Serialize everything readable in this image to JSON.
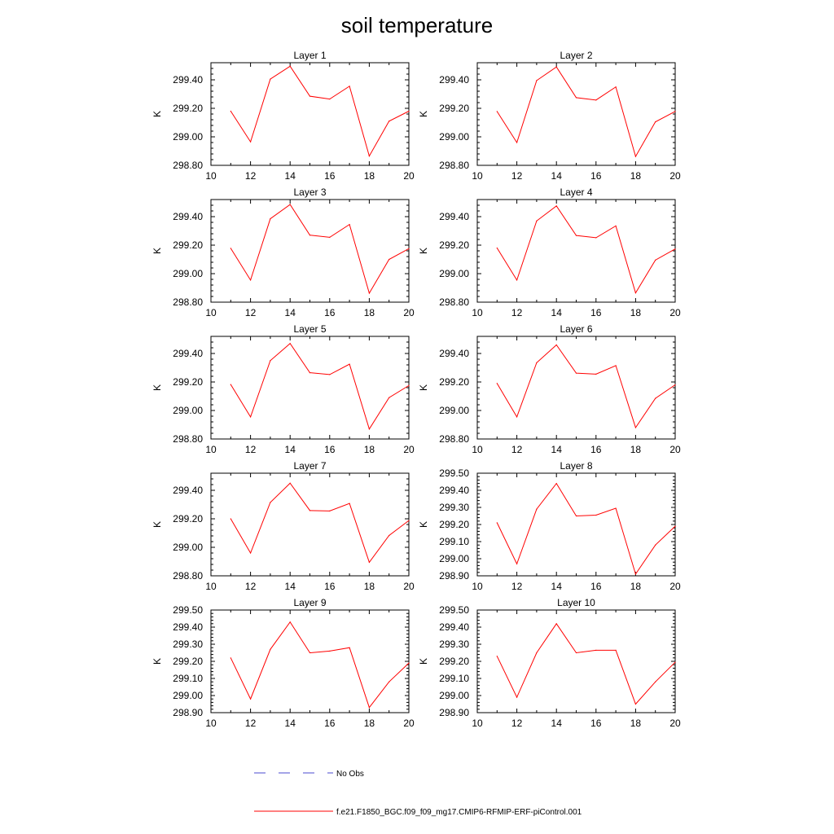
{
  "chart_data": {
    "type": "line",
    "title": "soil temperature",
    "legend": {
      "placement": "bottom",
      "entries": [
        {
          "label": "No Obs",
          "color": "#4a4ad0",
          "dash": "dashed"
        },
        {
          "label": "f.e21.F1850_BGC.f09_f09_mg17.CMIP6-RFMIP-ERF-piControl.001",
          "color": "#ff0000",
          "dash": "solid"
        }
      ]
    },
    "x": [
      11,
      12,
      13,
      14,
      15,
      16,
      17,
      18,
      19,
      20
    ],
    "xlim": [
      10,
      20
    ],
    "xticks": [
      "10",
      "12",
      "14",
      "16",
      "18",
      "20"
    ],
    "line_color": "#ff0000",
    "panels": [
      {
        "title": "Layer 1",
        "ylabel": "K",
        "ylim": [
          298.8,
          299.52
        ],
        "yticks": [
          "298.80",
          "299.00",
          "299.20",
          "299.40"
        ],
        "values": [
          299.18,
          298.965,
          299.405,
          299.495,
          299.285,
          299.265,
          299.355,
          298.865,
          299.11,
          299.18
        ]
      },
      {
        "title": "Layer 2",
        "ylabel": "K",
        "ylim": [
          298.8,
          299.52
        ],
        "yticks": [
          "298.80",
          "299.00",
          "299.20",
          "299.40"
        ],
        "values": [
          299.178,
          298.96,
          299.395,
          299.49,
          299.275,
          299.258,
          299.35,
          298.862,
          299.105,
          299.178
        ]
      },
      {
        "title": "Layer 3",
        "ylabel": "K",
        "ylim": [
          298.8,
          299.52
        ],
        "yticks": [
          "298.80",
          "299.00",
          "299.20",
          "299.40"
        ],
        "values": [
          299.178,
          298.955,
          299.385,
          299.485,
          299.27,
          299.255,
          299.345,
          298.863,
          299.1,
          299.175
        ]
      },
      {
        "title": "Layer 4",
        "ylabel": "K",
        "ylim": [
          298.8,
          299.52
        ],
        "yticks": [
          "298.80",
          "299.00",
          "299.20",
          "299.40"
        ],
        "values": [
          299.18,
          298.955,
          299.37,
          299.475,
          299.268,
          299.252,
          299.335,
          298.865,
          299.095,
          299.173
        ]
      },
      {
        "title": "Layer 5",
        "ylabel": "K",
        "ylim": [
          298.8,
          299.52
        ],
        "yticks": [
          "298.80",
          "299.00",
          "299.20",
          "299.40"
        ],
        "values": [
          299.182,
          298.955,
          299.35,
          299.47,
          299.265,
          299.252,
          299.325,
          298.87,
          299.09,
          299.175
        ]
      },
      {
        "title": "Layer 6",
        "ylabel": "K",
        "ylim": [
          298.8,
          299.52
        ],
        "yticks": [
          "298.80",
          "299.00",
          "299.20",
          "299.40"
        ],
        "values": [
          299.19,
          298.955,
          299.335,
          299.46,
          299.262,
          299.255,
          299.315,
          298.88,
          299.085,
          299.18
        ]
      },
      {
        "title": "Layer 7",
        "ylabel": "K",
        "ylim": [
          298.8,
          299.52
        ],
        "yticks": [
          "298.80",
          "299.00",
          "299.20",
          "299.40"
        ],
        "values": [
          299.2,
          298.96,
          299.315,
          299.45,
          299.258,
          299.255,
          299.308,
          298.895,
          299.083,
          299.188
        ]
      },
      {
        "title": "Layer 8",
        "ylabel": "K",
        "ylim": [
          298.9,
          299.5
        ],
        "yticks": [
          "298.90",
          "299.00",
          "299.10",
          "299.20",
          "299.30",
          "299.40",
          "299.50"
        ],
        "values": [
          299.21,
          298.97,
          299.29,
          299.44,
          299.25,
          299.255,
          299.295,
          298.91,
          299.08,
          299.19
        ]
      },
      {
        "title": "Layer 9",
        "ylabel": "K",
        "ylim": [
          298.9,
          299.5
        ],
        "yticks": [
          "298.90",
          "299.00",
          "299.10",
          "299.20",
          "299.30",
          "299.40",
          "299.50"
        ],
        "values": [
          299.22,
          298.98,
          299.27,
          299.43,
          299.25,
          299.26,
          299.28,
          298.93,
          299.08,
          299.19
        ]
      },
      {
        "title": "Layer 10",
        "ylabel": "K",
        "ylim": [
          298.9,
          299.5
        ],
        "yticks": [
          "298.90",
          "299.00",
          "299.10",
          "299.20",
          "299.30",
          "299.40",
          "299.50"
        ],
        "values": [
          299.23,
          298.99,
          299.25,
          299.42,
          299.25,
          299.265,
          299.265,
          298.95,
          299.08,
          299.195
        ]
      }
    ]
  }
}
